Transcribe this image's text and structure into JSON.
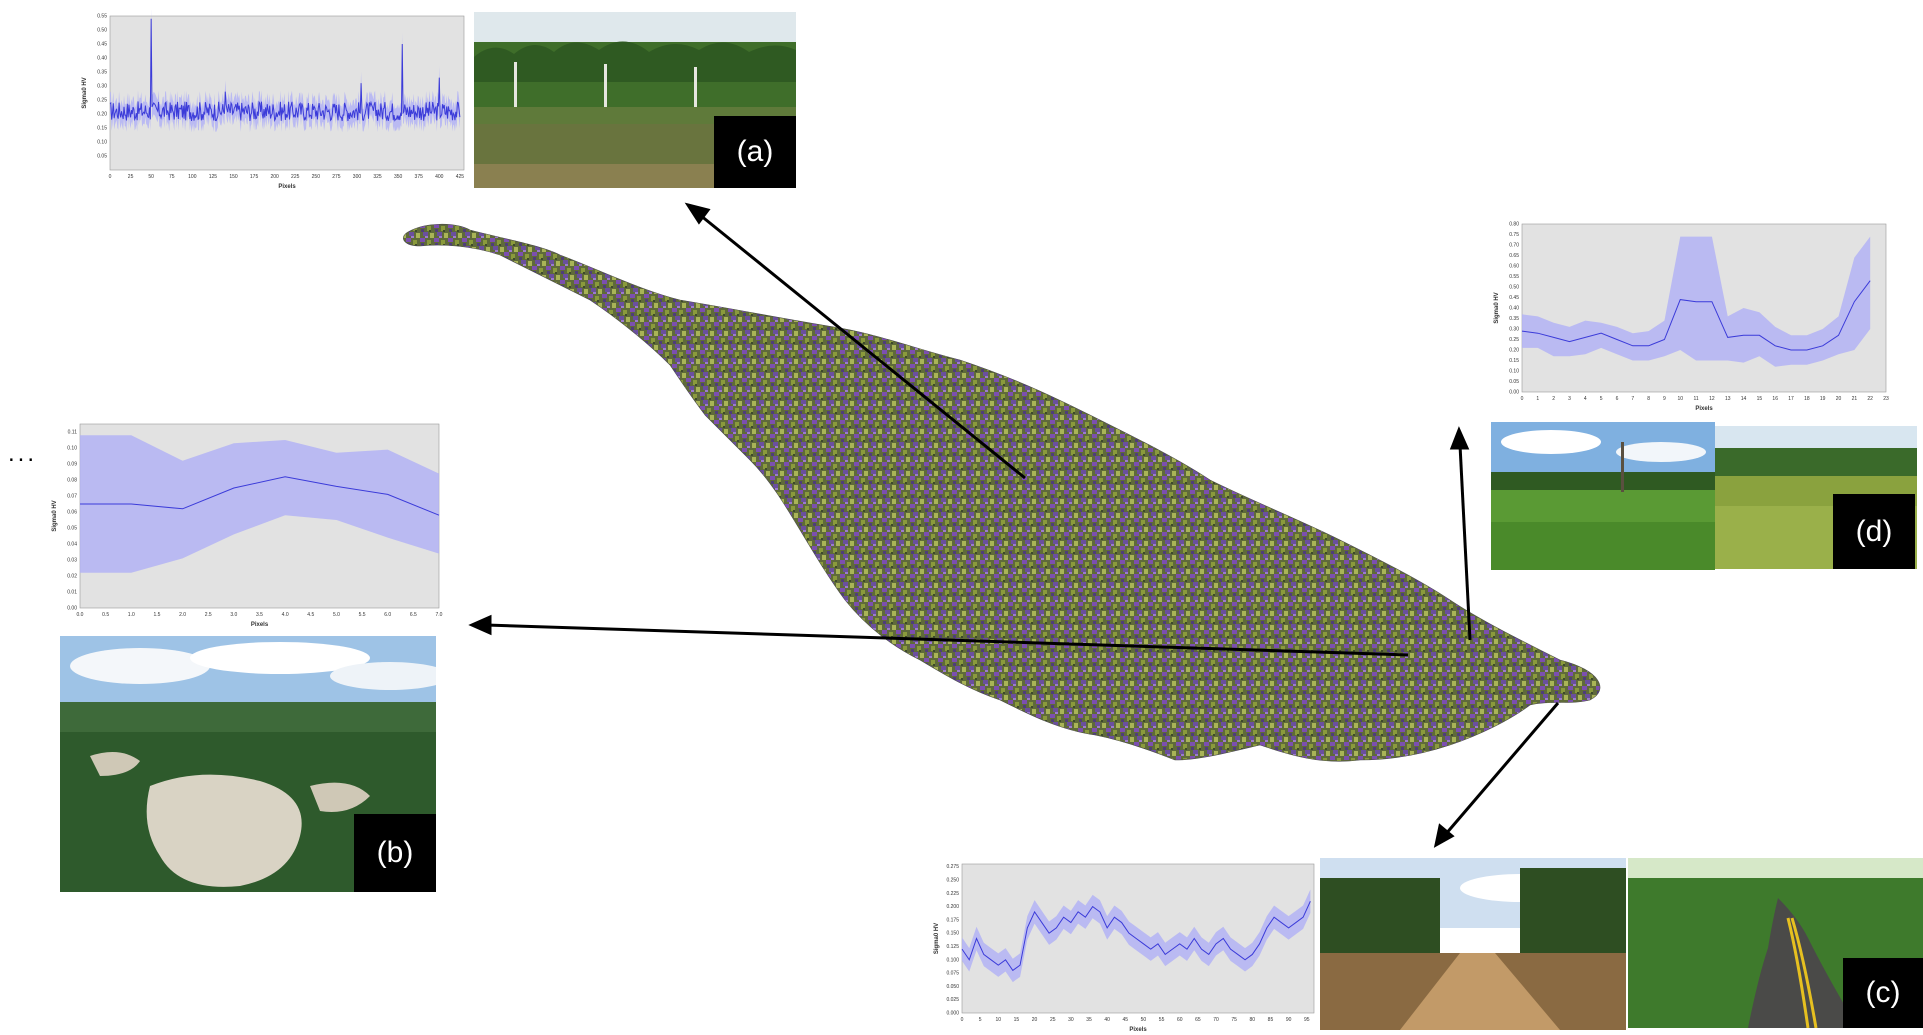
{
  "ellipsis": "...",
  "labels": {
    "a": "(a)",
    "b": "(b)",
    "c": "(c)",
    "d": "(d)"
  },
  "colors": {
    "series": "#3b3bd9",
    "band": "#b3b3f5",
    "plot_bg": "#e2e2e2",
    "arrow": "#000000"
  },
  "chart_data": [
    {
      "id": "a",
      "type": "line",
      "xlabel": "Pixels",
      "ylabel": "Sigma0 HV",
      "xticks": [
        "0",
        "25",
        "50",
        "75",
        "100",
        "125",
        "150",
        "175",
        "200",
        "225",
        "250",
        "275",
        "300",
        "325",
        "350",
        "375",
        "400",
        "425"
      ],
      "yticks": [
        "0.05",
        "0.10",
        "0.15",
        "0.20",
        "0.25",
        "0.30",
        "0.35",
        "0.40",
        "0.45",
        "0.50",
        "0.55"
      ],
      "xlim": [
        0,
        430
      ],
      "ylim": [
        0.0,
        0.55
      ],
      "band_halfwidth": 0.04,
      "spikes": [
        [
          50,
          0.54
        ],
        [
          355,
          0.45
        ],
        [
          400,
          0.33
        ],
        [
          305,
          0.31
        ],
        [
          140,
          0.28
        ]
      ],
      "base": 0.21,
      "noise": 0.035
    },
    {
      "id": "b",
      "type": "area",
      "xlabel": "Pixels",
      "ylabel": "Sigma0 HV",
      "xticks": [
        "0.0",
        "0.5",
        "1.0",
        "1.5",
        "2.0",
        "2.5",
        "3.0",
        "3.5",
        "4.0",
        "4.5",
        "5.0",
        "5.5",
        "6.0",
        "6.5",
        "7.0"
      ],
      "yticks": [
        "0.00",
        "0.01",
        "0.02",
        "0.03",
        "0.04",
        "0.05",
        "0.06",
        "0.07",
        "0.08",
        "0.09",
        "0.10",
        "0.11"
      ],
      "xlim": [
        0,
        7
      ],
      "ylim": [
        0.0,
        0.115
      ],
      "x": [
        0,
        1,
        2,
        3,
        4,
        5,
        6,
        7
      ],
      "mean": [
        0.065,
        0.065,
        0.062,
        0.075,
        0.082,
        0.076,
        0.071,
        0.058
      ],
      "upper": [
        0.108,
        0.108,
        0.092,
        0.103,
        0.105,
        0.097,
        0.099,
        0.084
      ],
      "lower": [
        0.022,
        0.022,
        0.031,
        0.046,
        0.058,
        0.055,
        0.044,
        0.034
      ]
    },
    {
      "id": "c",
      "type": "area",
      "xlabel": "Pixels",
      "ylabel": "Sigma0 HV",
      "xticks": [
        "0",
        "5",
        "10",
        "15",
        "20",
        "25",
        "30",
        "35",
        "40",
        "45",
        "50",
        "55",
        "60",
        "65",
        "70",
        "75",
        "80",
        "85",
        "90",
        "95"
      ],
      "yticks": [
        "0.000",
        "0.025",
        "0.050",
        "0.075",
        "0.100",
        "0.125",
        "0.150",
        "0.175",
        "0.200",
        "0.225",
        "0.250",
        "0.275"
      ],
      "xlim": [
        0,
        97
      ],
      "ylim": [
        0.0,
        0.28
      ],
      "x": [
        0,
        2,
        4,
        6,
        8,
        10,
        12,
        14,
        16,
        18,
        20,
        22,
        24,
        26,
        28,
        30,
        32,
        34,
        36,
        38,
        40,
        42,
        44,
        46,
        48,
        50,
        52,
        54,
        56,
        58,
        60,
        62,
        64,
        66,
        68,
        70,
        72,
        74,
        76,
        78,
        80,
        82,
        84,
        86,
        88,
        90,
        92,
        94,
        96
      ],
      "mean": [
        0.12,
        0.1,
        0.14,
        0.11,
        0.1,
        0.09,
        0.1,
        0.08,
        0.09,
        0.16,
        0.19,
        0.17,
        0.15,
        0.16,
        0.18,
        0.17,
        0.19,
        0.18,
        0.2,
        0.19,
        0.16,
        0.18,
        0.17,
        0.15,
        0.14,
        0.13,
        0.12,
        0.13,
        0.11,
        0.12,
        0.13,
        0.12,
        0.14,
        0.12,
        0.11,
        0.13,
        0.14,
        0.12,
        0.11,
        0.1,
        0.11,
        0.13,
        0.16,
        0.18,
        0.17,
        0.16,
        0.17,
        0.18,
        0.21
      ],
      "band_halfwidth": 0.022
    },
    {
      "id": "d",
      "type": "area",
      "xlabel": "Pixels",
      "ylabel": "Sigma0 HV",
      "xticks": [
        "0",
        "1",
        "2",
        "3",
        "4",
        "5",
        "6",
        "7",
        "8",
        "9",
        "10",
        "11",
        "12",
        "13",
        "14",
        "15",
        "16",
        "17",
        "18",
        "19",
        "20",
        "21",
        "22",
        "23"
      ],
      "yticks": [
        "0.00",
        "0.05",
        "0.10",
        "0.15",
        "0.20",
        "0.25",
        "0.30",
        "0.35",
        "0.40",
        "0.45",
        "0.50",
        "0.55",
        "0.60",
        "0.65",
        "0.70",
        "0.75",
        "0.80"
      ],
      "xlim": [
        0,
        23
      ],
      "ylim": [
        0.0,
        0.8
      ],
      "x": [
        0,
        1,
        2,
        3,
        4,
        5,
        6,
        7,
        8,
        9,
        10,
        11,
        12,
        13,
        14,
        15,
        16,
        17,
        18,
        19,
        20,
        21,
        22
      ],
      "mean": [
        0.29,
        0.28,
        0.26,
        0.24,
        0.26,
        0.28,
        0.25,
        0.22,
        0.22,
        0.25,
        0.44,
        0.43,
        0.43,
        0.26,
        0.27,
        0.27,
        0.22,
        0.2,
        0.2,
        0.22,
        0.27,
        0.43,
        0.53
      ],
      "upper": [
        0.37,
        0.36,
        0.33,
        0.31,
        0.34,
        0.33,
        0.31,
        0.28,
        0.29,
        0.34,
        0.74,
        0.74,
        0.74,
        0.36,
        0.4,
        0.38,
        0.31,
        0.27,
        0.27,
        0.3,
        0.36,
        0.64,
        0.74
      ],
      "lower": [
        0.21,
        0.21,
        0.17,
        0.17,
        0.18,
        0.21,
        0.18,
        0.15,
        0.15,
        0.17,
        0.2,
        0.15,
        0.15,
        0.15,
        0.14,
        0.17,
        0.12,
        0.13,
        0.13,
        0.15,
        0.18,
        0.2,
        0.3
      ]
    }
  ]
}
